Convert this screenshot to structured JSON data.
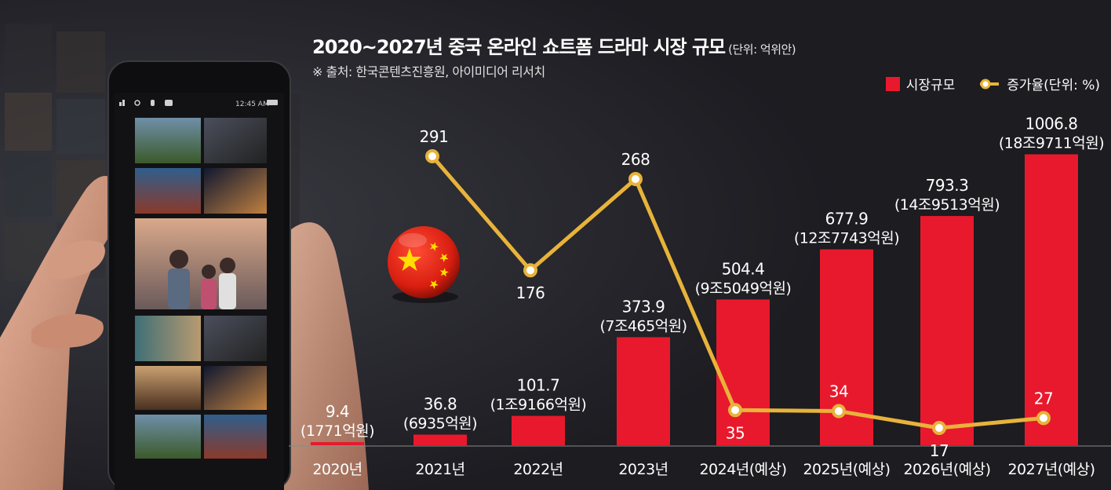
{
  "header": {
    "title": "2020~2027년 중국 온라인 쇼트폼 드라마 시장 규모",
    "unit": "(단위: 억위안)",
    "source": "※ 출처: 한국콘텐츠진흥원, 아이미디어 리서치"
  },
  "legend": {
    "bar_label": "시장규모",
    "line_label": "증가율(단위: %)"
  },
  "colors": {
    "background": "#1c1c21",
    "bar": "#e8192c",
    "line": "#e8b33a",
    "flag_red": "#de2910",
    "flag_star": "#ffde00"
  },
  "chart_data": {
    "type": "bar",
    "title": "2020~2027년 중국 온라인 쇼트폼 드라마 시장 규모",
    "categories": [
      "2020년",
      "2021년",
      "2022년",
      "2023년",
      "2024년(예상)",
      "2025년(예상)",
      "2026년(예상)",
      "2027년(예상)"
    ],
    "series": [
      {
        "name": "시장규모",
        "type": "bar",
        "values": [
          9.4,
          36.8,
          101.7,
          373.9,
          504.4,
          677.9,
          793.3,
          1006.8
        ],
        "value_labels": [
          "9.4",
          "36.8",
          "101.7",
          "373.9",
          "504.4",
          "677.9",
          "793.3",
          "1006.8"
        ],
        "sub_labels": [
          "(1771억원)",
          "(6935억원)",
          "(1조9166억원)",
          "(7조465억원)",
          "(9조5049억원)",
          "(12조7743억원)",
          "(14조9513억원)",
          "(18조9711억원)"
        ]
      },
      {
        "name": "증가율(단위: %)",
        "type": "line",
        "x": [
          "2021년",
          "2022년",
          "2023년",
          "2024년(예상)",
          "2025년(예상)",
          "2026년(예상)",
          "2027년(예상)"
        ],
        "values": [
          291,
          176,
          268,
          35,
          34,
          17,
          27
        ],
        "value_labels": [
          "291",
          "176",
          "268",
          "35",
          "34",
          "17",
          "27"
        ]
      }
    ],
    "xlabel": "",
    "ylabel": "",
    "ylim": [
      0,
      1006.8
    ],
    "grid": false,
    "legend_position": "top-right"
  }
}
